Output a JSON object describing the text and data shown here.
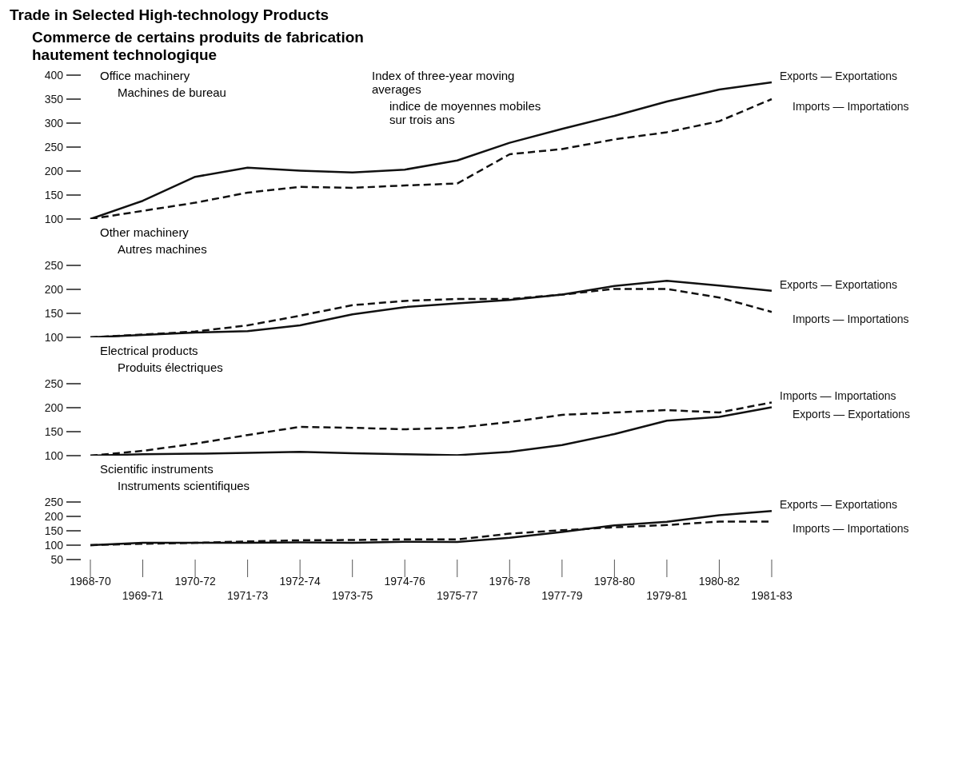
{
  "chart_data": [
    {
      "type": "line",
      "title": "Trade in Selected High-technology Products",
      "subtitle": "Commerce de certains produits de fabrication hautement technologique",
      "annotations": [
        "Office machinery",
        "Machines de bureau",
        "Index of three-year moving averages",
        "indice de moyennes mobiles sur trois ans"
      ],
      "categories": [
        "1968-70",
        "1969-71",
        "1970-72",
        "1971-73",
        "1972-74",
        "1973-75",
        "1974-76",
        "1975-77",
        "1976-78",
        "1977-79",
        "1978-80",
        "1979-81",
        "1980-82",
        "1981-83"
      ],
      "series": [
        {
          "name": "Exports — Exportations",
          "color": "#111111",
          "line_style": "solid",
          "values": [
            100,
            138,
            188,
            207,
            201,
            197,
            203,
            222,
            259,
            288,
            315,
            345,
            370,
            385
          ]
        },
        {
          "name": "Imports — Importations",
          "color": "#111111",
          "line_style": "dashed",
          "values": [
            100,
            117,
            134,
            155,
            167,
            165,
            170,
            174,
            235,
            246,
            266,
            281,
            304,
            350
          ]
        }
      ],
      "ylim": [
        100,
        400
      ],
      "yticks": [
        100,
        150,
        200,
        250,
        300,
        350,
        400
      ],
      "grid": false,
      "legend": false,
      "marker": "none",
      "tick_labels": "y"
    },
    {
      "type": "line",
      "annotations": [
        "Other machinery",
        "Autres machines"
      ],
      "categories": [
        "1968-70",
        "1969-71",
        "1970-72",
        "1971-73",
        "1972-74",
        "1973-75",
        "1974-76",
        "1975-77",
        "1976-78",
        "1977-79",
        "1978-80",
        "1979-81",
        "1980-82",
        "1981-83"
      ],
      "series": [
        {
          "name": "Exports — Exportations",
          "color": "#111111",
          "line_style": "solid",
          "values": [
            100,
            105,
            110,
            113,
            125,
            148,
            163,
            171,
            178,
            189,
            207,
            218,
            208,
            197
          ]
        },
        {
          "name": "Imports — Importations",
          "color": "#111111",
          "line_style": "dashed",
          "values": [
            100,
            106,
            112,
            125,
            145,
            167,
            176,
            180,
            180,
            189,
            201,
            201,
            183,
            153
          ]
        }
      ],
      "ylim": [
        100,
        250
      ],
      "yticks": [
        100,
        150,
        200,
        250
      ],
      "grid": false,
      "legend": false,
      "marker": "none",
      "tick_labels": "y"
    },
    {
      "type": "line",
      "annotations": [
        "Electrical products",
        "Produits électriques"
      ],
      "categories": [
        "1968-70",
        "1969-71",
        "1970-72",
        "1971-73",
        "1972-74",
        "1973-75",
        "1974-76",
        "1975-77",
        "1976-78",
        "1977-79",
        "1978-80",
        "1979-81",
        "1980-82",
        "1981-83"
      ],
      "series": [
        {
          "name": "Imports — Importations",
          "color": "#111111",
          "line_style": "dashed",
          "values": [
            100,
            110,
            125,
            143,
            160,
            158,
            155,
            158,
            170,
            185,
            190,
            195,
            190,
            211
          ]
        },
        {
          "name": "Exports — Exportations",
          "color": "#111111",
          "line_style": "solid",
          "values": [
            100,
            103,
            104,
            106,
            108,
            105,
            103,
            101,
            108,
            122,
            145,
            173,
            181,
            201
          ]
        }
      ],
      "ylim": [
        100,
        250
      ],
      "yticks": [
        100,
        150,
        200,
        250
      ],
      "grid": false,
      "legend": false,
      "marker": "none",
      "tick_labels": "y"
    },
    {
      "type": "line",
      "annotations": [
        "Scientific instruments",
        "Instruments scientifiques"
      ],
      "categories": [
        "1968-70",
        "1969-71",
        "1970-72",
        "1971-73",
        "1972-74",
        "1973-75",
        "1974-76",
        "1975-77",
        "1976-78",
        "1977-79",
        "1978-80",
        "1979-81",
        "1980-82",
        "1981-83"
      ],
      "series": [
        {
          "name": "Exports — Exportations",
          "color": "#111111",
          "line_style": "solid",
          "values": [
            100,
            108,
            108,
            108,
            110,
            108,
            112,
            111,
            126,
            146,
            169,
            181,
            204,
            219
          ]
        },
        {
          "name": "Imports — Importations",
          "color": "#111111",
          "line_style": "dashed",
          "values": [
            100,
            105,
            108,
            113,
            117,
            118,
            120,
            120,
            140,
            152,
            162,
            170,
            182,
            182
          ]
        }
      ],
      "ylim": [
        50,
        250
      ],
      "yticks": [
        50,
        100,
        150,
        200,
        250
      ],
      "grid": false,
      "legend": false,
      "marker": "none"
    }
  ]
}
